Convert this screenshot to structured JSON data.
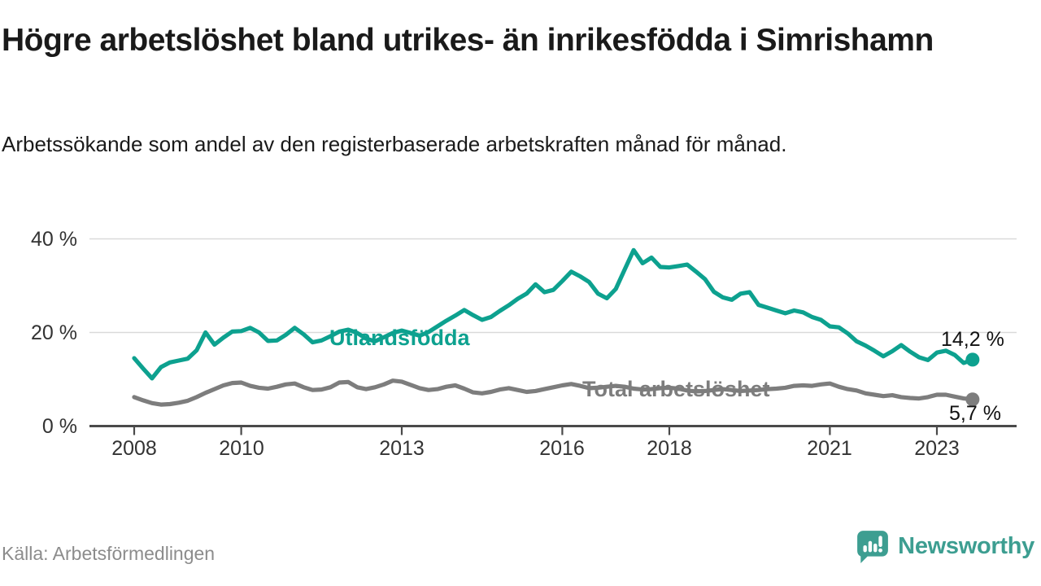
{
  "header": {
    "title": "Högre arbetslöshet bland utrikes- än inrikesfödda i Simrishamn",
    "subtitle": "Arbetssökande som andel av den registerbaserade arbetskraften månad för månad."
  },
  "chart_data": {
    "type": "line",
    "title": "Högre arbetslöshet bland utrikes- än inrikesfödda i Simrishamn",
    "subtitle": "Arbetssökande som andel av den registerbaserade arbetskraften månad för månad.",
    "unit": "%",
    "x_axis": {
      "tick_years": [
        2008,
        2010,
        2013,
        2016,
        2018,
        2021,
        2023
      ],
      "tick_labels": [
        "2008",
        "2010",
        "2013",
        "2016",
        "2018",
        "2021",
        "2023"
      ],
      "range_years": [
        2008.0,
        2023.67
      ],
      "sampling_step_years": 0.1667
    },
    "y_axis": {
      "tick_labels_top_to_bottom": [
        "40 %",
        "20 %",
        "0 %"
      ],
      "tick_values": [
        40,
        20,
        0
      ],
      "ylim": [
        0,
        42
      ],
      "grid": "horizontal-only"
    },
    "legend_position": "inline-labels-on-lines",
    "series": [
      {
        "name": "Utlandsfödda",
        "color": "#0da18f",
        "end_label": "14,2 %",
        "end_value": 14.2,
        "values": [
          14.5,
          12.3,
          10.2,
          12.6,
          13.6,
          14.0,
          14.4,
          16.2,
          20.0,
          17.4,
          18.9,
          20.2,
          20.3,
          21.0,
          20.0,
          18.2,
          18.3,
          19.5,
          21.0,
          19.6,
          17.9,
          18.3,
          19.2,
          20.2,
          20.6,
          19.9,
          18.7,
          18.1,
          19.0,
          19.9,
          20.4,
          19.9,
          19.3,
          20.1,
          21.3,
          22.5,
          23.6,
          24.8,
          23.7,
          22.7,
          23.3,
          24.6,
          25.8,
          27.2,
          28.3,
          30.3,
          28.6,
          29.1,
          31.0,
          33.0,
          32.0,
          30.8,
          28.3,
          27.3,
          29.3,
          33.5,
          37.6,
          34.8,
          36.0,
          34.0,
          33.9,
          34.2,
          34.5,
          33.0,
          31.4,
          28.7,
          27.5,
          27.0,
          28.3,
          28.6,
          25.9,
          25.3,
          24.7,
          24.1,
          24.7,
          24.3,
          23.3,
          22.7,
          21.3,
          21.1,
          19.8,
          18.1,
          17.2,
          16.1,
          14.9,
          16.0,
          17.3,
          15.9,
          14.7,
          14.1,
          15.7,
          16.1,
          15.2,
          13.5,
          14.2
        ]
      },
      {
        "name": "Total arbetslöshet",
        "color": "#7d7d7d",
        "end_label": "5,7 %",
        "end_value": 5.7,
        "values": [
          6.2,
          5.5,
          4.9,
          4.6,
          4.7,
          5.0,
          5.4,
          6.2,
          7.1,
          7.9,
          8.7,
          9.2,
          9.3,
          8.6,
          8.2,
          8.0,
          8.4,
          8.9,
          9.1,
          8.3,
          7.7,
          7.8,
          8.3,
          9.3,
          9.4,
          8.3,
          7.9,
          8.3,
          8.9,
          9.7,
          9.5,
          8.8,
          8.1,
          7.7,
          7.9,
          8.4,
          8.7,
          8.0,
          7.2,
          7.0,
          7.3,
          7.8,
          8.1,
          7.7,
          7.3,
          7.5,
          7.9,
          8.3,
          8.7,
          9.0,
          8.6,
          8.1,
          8.2,
          8.4,
          8.6,
          8.4,
          8.0,
          7.8,
          7.9,
          8.1,
          8.2,
          8.0,
          7.6,
          7.4,
          7.5,
          7.7,
          7.9,
          7.7,
          7.5,
          7.6,
          7.7,
          7.9,
          8.0,
          8.2,
          8.6,
          8.7,
          8.6,
          8.9,
          9.1,
          8.4,
          7.9,
          7.6,
          7.0,
          6.7,
          6.4,
          6.6,
          6.2,
          6.0,
          5.9,
          6.2,
          6.7,
          6.7,
          6.3,
          5.9,
          5.7
        ]
      }
    ]
  },
  "colors": {
    "accent_teal": "#0da18f",
    "series_gray": "#7d7d7d",
    "grid": "#d9d9d9",
    "axis": "#4a4a4a",
    "brand_teal": "#3d9e91"
  },
  "footer": {
    "source": "Källa: Arbetsförmedlingen",
    "brand": "Newsworthy"
  }
}
